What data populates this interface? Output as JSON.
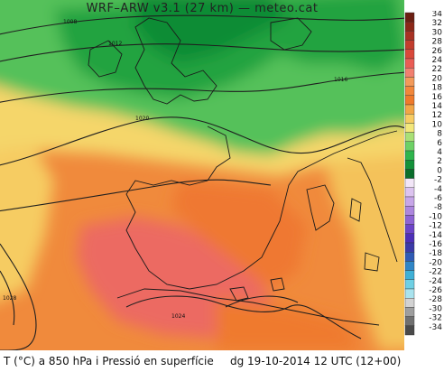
{
  "title": "WRF–ARW v3.1 (27 km) — meteo.cat",
  "caption": {
    "left": "T (°C) a 850 hPa i Pressió en superfície",
    "right": "dg 19-10-2014 12 UTC (12+00)"
  },
  "legend": {
    "levels": [
      "34",
      "32",
      "30",
      "28",
      "26",
      "24",
      "22",
      "20",
      "18",
      "16",
      "14",
      "12",
      "10",
      "8",
      "6",
      "4",
      "2",
      "0",
      "-2",
      "-4",
      "-6",
      "-8",
      "-10",
      "-12",
      "-14",
      "-16",
      "-18",
      "-20",
      "-22",
      "-24",
      "-26",
      "-28",
      "-30",
      "-32",
      "-34"
    ],
    "colors": [
      "#6b1f12",
      "#8c2717",
      "#a83223",
      "#c23d2d",
      "#d9483a",
      "#ea5d55",
      "#f28070",
      "#f39a5a",
      "#f2873b",
      "#ef7a2b",
      "#f1a646",
      "#f7cc63",
      "#f3e77b",
      "#a9e077",
      "#6ed166",
      "#2fb54d",
      "#14913a",
      "#0a6e2c",
      "#f2e6f7",
      "#dcc3ef",
      "#c7a6e8",
      "#ad86de",
      "#8e63d4",
      "#6c44c8",
      "#4d2fb8",
      "#3b3aa8",
      "#2f5bb5",
      "#2f86c7",
      "#3fb0d6",
      "#6fd0e4",
      "#a9e3ee",
      "#d2d2d2",
      "#9e9e9e",
      "#707070",
      "#4a4a4a"
    ]
  },
  "isobars": [
    "1008",
    "1012",
    "1016",
    "1020",
    "1024",
    "1028"
  ]
}
